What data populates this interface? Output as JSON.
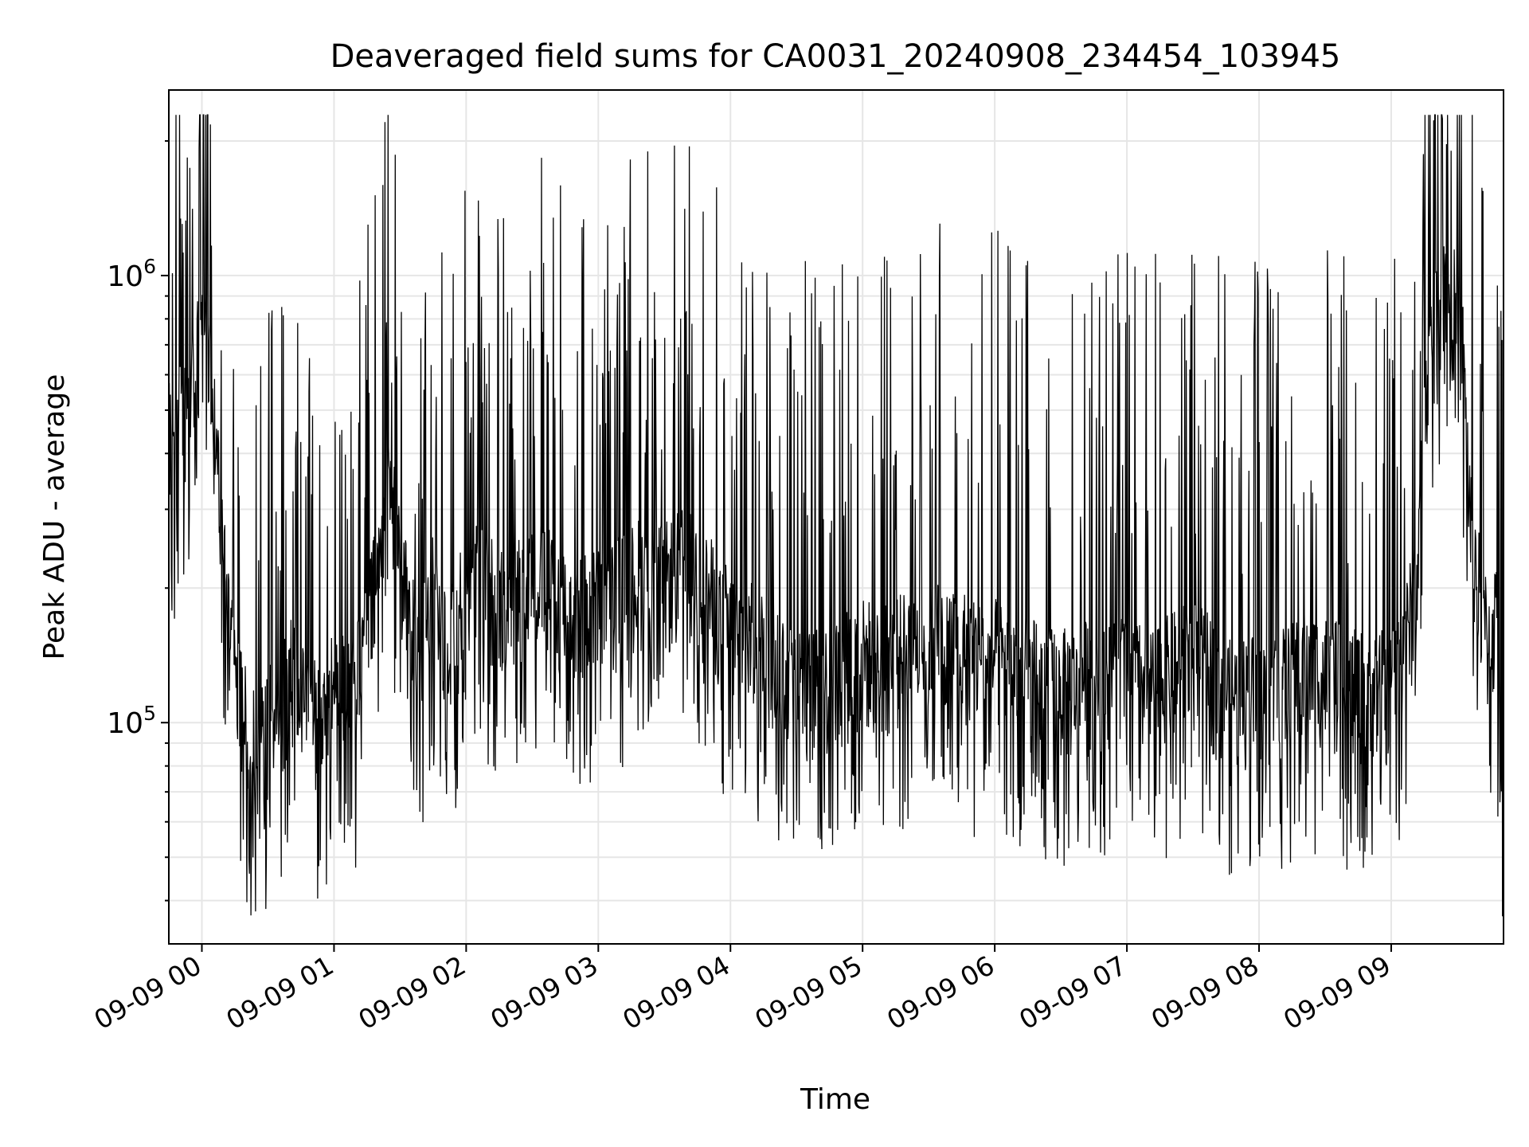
{
  "chart_data": {
    "type": "line",
    "title": "Deaveraged field sums for CA0031_20240908_234454_103945",
    "xlabel": "Time",
    "ylabel": "Peak ADU - average",
    "yscale": "log",
    "x_range": [
      "2024-09-08 23:45:00",
      "2024-09-09 09:51:00"
    ],
    "ylim": [
      32000,
      2600000
    ],
    "x_ticks": [
      {
        "value": "2024-09-09 00:00",
        "label": "09-09 00"
      },
      {
        "value": "2024-09-09 01:00",
        "label": "09-09 01"
      },
      {
        "value": "2024-09-09 02:00",
        "label": "09-09 02"
      },
      {
        "value": "2024-09-09 03:00",
        "label": "09-09 03"
      },
      {
        "value": "2024-09-09 04:00",
        "label": "09-09 04"
      },
      {
        "value": "2024-09-09 05:00",
        "label": "09-09 05"
      },
      {
        "value": "2024-09-09 06:00",
        "label": "09-09 06"
      },
      {
        "value": "2024-09-09 07:00",
        "label": "09-09 07"
      },
      {
        "value": "2024-09-09 08:00",
        "label": "09-09 08"
      },
      {
        "value": "2024-09-09 09:00",
        "label": "09-09 09"
      }
    ],
    "y_ticks": [
      {
        "value": 100000,
        "base": "10",
        "exp": "5"
      },
      {
        "value": 1000000,
        "base": "10",
        "exp": "6"
      }
    ],
    "grid": true,
    "line_color": "#000000",
    "series": [
      {
        "x": [
          "2024-09-08 23:45",
          "2024-09-08 23:48",
          "2024-09-08 23:52",
          "2024-09-08 23:56",
          "2024-09-09 00:00",
          "2024-09-09 00:04",
          "2024-09-09 00:08",
          "2024-09-09 00:12",
          "2024-09-09 00:15",
          "2024-09-09 00:20",
          "2024-09-09 00:25",
          "2024-09-09 00:30",
          "2024-09-09 00:35",
          "2024-09-09 00:40",
          "2024-09-09 00:45",
          "2024-09-09 00:50",
          "2024-09-09 00:55",
          "2024-09-09 01:00",
          "2024-09-09 01:05",
          "2024-09-09 01:10",
          "2024-09-09 01:15",
          "2024-09-09 01:20",
          "2024-09-09 01:25",
          "2024-09-09 01:30",
          "2024-09-09 01:35",
          "2024-09-09 01:40",
          "2024-09-09 01:45",
          "2024-09-09 01:50",
          "2024-09-09 01:55",
          "2024-09-09 02:00",
          "2024-09-09 02:10",
          "2024-09-09 02:20",
          "2024-09-09 02:30",
          "2024-09-09 02:40",
          "2024-09-09 02:50",
          "2024-09-09 03:00",
          "2024-09-09 03:10",
          "2024-09-09 03:20",
          "2024-09-09 03:30",
          "2024-09-09 03:40",
          "2024-09-09 03:50",
          "2024-09-09 04:00",
          "2024-09-09 04:10",
          "2024-09-09 04:20",
          "2024-09-09 04:30",
          "2024-09-09 04:40",
          "2024-09-09 04:50",
          "2024-09-09 05:00",
          "2024-09-09 05:10",
          "2024-09-09 05:20",
          "2024-09-09 05:30",
          "2024-09-09 05:40",
          "2024-09-09 05:50",
          "2024-09-09 06:00",
          "2024-09-09 06:10",
          "2024-09-09 06:20",
          "2024-09-09 06:30",
          "2024-09-09 06:40",
          "2024-09-09 06:50",
          "2024-09-09 07:00",
          "2024-09-09 07:10",
          "2024-09-09 07:20",
          "2024-09-09 07:30",
          "2024-09-09 07:40",
          "2024-09-09 07:50",
          "2024-09-09 08:00",
          "2024-09-09 08:10",
          "2024-09-09 08:20",
          "2024-09-09 08:30",
          "2024-09-09 08:40",
          "2024-09-09 08:50",
          "2024-09-09 09:00",
          "2024-09-09 09:08",
          "2024-09-09 09:12",
          "2024-09-09 09:16",
          "2024-09-09 09:20",
          "2024-09-09 09:24",
          "2024-09-09 09:28",
          "2024-09-09 09:32",
          "2024-09-09 09:36",
          "2024-09-09 09:40",
          "2024-09-09 09:44",
          "2024-09-09 09:48",
          "2024-09-09 09:51"
        ],
        "y": [
          420000,
          400000,
          460000,
          520000,
          700000,
          550000,
          300000,
          160000,
          120000,
          90000,
          80000,
          90000,
          100000,
          120000,
          110000,
          100000,
          90000,
          110000,
          120000,
          110000,
          150000,
          200000,
          300000,
          220000,
          150000,
          140000,
          180000,
          150000,
          140000,
          200000,
          180000,
          170000,
          200000,
          180000,
          160000,
          170000,
          180000,
          200000,
          190000,
          210000,
          180000,
          150000,
          140000,
          130000,
          115000,
          110000,
          120000,
          130000,
          125000,
          135000,
          140000,
          145000,
          130000,
          130000,
          120000,
          115000,
          110000,
          115000,
          120000,
          120000,
          110000,
          120000,
          130000,
          115000,
          105000,
          110000,
          110000,
          120000,
          120000,
          110000,
          110000,
          110000,
          150000,
          200000,
          500000,
          750000,
          900000,
          800000,
          700000,
          260000,
          180000,
          140000,
          160000,
          60000
        ]
      }
    ]
  }
}
